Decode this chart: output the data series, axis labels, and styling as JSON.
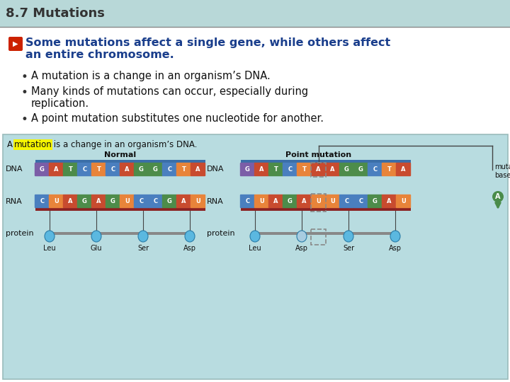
{
  "title": "8.7 Mutations",
  "header_bg": "#b8d8d8",
  "slide_bg": "#ffffff",
  "diagram_bg": "#b8dce0",
  "bullet_header_color": "#1a3e8c",
  "body_text_color": "#111111",
  "bullet_header_line1": "Some mutations affect a single gene, while others affect",
  "bullet_header_line2": "an entire chromosome.",
  "bullets": [
    "A mutation is a change in an organism’s DNA.",
    "Many kinds of mutations can occur, especially during replication.",
    "A point mutation substitutes one nucleotide for another."
  ],
  "bullet2_line2": "replication.",
  "diagram_caption_pre": "A ",
  "diagram_caption_highlight": "mutation",
  "diagram_caption_post": " is a change in an organism’s DNA.",
  "normal_label": "Normal",
  "point_label": "Point mutation",
  "dna_label": "DNA",
  "rna_label": "RNA",
  "protein_label": "protein",
  "normal_dna": [
    "G",
    "A",
    "T",
    "C",
    "T",
    "C",
    "A",
    "G",
    "G",
    "C",
    "T",
    "A"
  ],
  "normal_rna": [
    "C",
    "U",
    "A",
    "G",
    "A",
    "G",
    "U",
    "C",
    "C",
    "G",
    "A",
    "U"
  ],
  "normal_aa": [
    "Leu",
    "Glu",
    "Ser",
    "Asp"
  ],
  "point_dna": [
    "G",
    "A",
    "T",
    "C",
    "T",
    "A",
    "A",
    "G",
    "G",
    "C",
    "T",
    "A"
  ],
  "point_rna": [
    "C",
    "U",
    "A",
    "G",
    "A",
    "U",
    "U",
    "C",
    "C",
    "G",
    "A",
    "U"
  ],
  "point_aa": [
    "Leu",
    "Asp",
    "Ser",
    "Asp"
  ],
  "mutated_base_label": "mutated\nbase",
  "mutated_idx": 5,
  "dna_colors_normal": [
    "#7b5ea7",
    "#c84b2f",
    "#4d8c4a",
    "#4a7fbf",
    "#e8843a",
    "#4a7fbf",
    "#c84b2f",
    "#4d8c4a",
    "#4d8c4a",
    "#4a7fbf",
    "#e8843a",
    "#c84b2f"
  ],
  "rna_colors_normal": [
    "#4a7fbf",
    "#e8843a",
    "#c84b2f",
    "#4d8c4a",
    "#c84b2f",
    "#4d8c4a",
    "#e8843a",
    "#4a7fbf",
    "#4a7fbf",
    "#4d8c4a",
    "#c84b2f",
    "#e8843a"
  ],
  "dna_colors_point": [
    "#7b5ea7",
    "#c84b2f",
    "#4d8c4a",
    "#4a7fbf",
    "#e8843a",
    "#c84b2f",
    "#c84b2f",
    "#4d8c4a",
    "#4d8c4a",
    "#4a7fbf",
    "#e8843a",
    "#c84b2f"
  ],
  "rna_colors_point": [
    "#4a7fbf",
    "#e8843a",
    "#c84b2f",
    "#4d8c4a",
    "#c84b2f",
    "#e8843a",
    "#e8843a",
    "#4a7fbf",
    "#4a7fbf",
    "#4d8c4a",
    "#c84b2f",
    "#e8843a"
  ],
  "strand_top_color": "#3a6ea8",
  "strand_bot_color": "#8b2222",
  "protein_bar_color": "#888888",
  "blob_color": "#5bb8e0",
  "blob_color_mutated": "#a8cce0",
  "line_color": "#444444",
  "bracket_color": "#444444",
  "arrow_color": "#4a8c4a",
  "highlight_color": "#f5f500"
}
